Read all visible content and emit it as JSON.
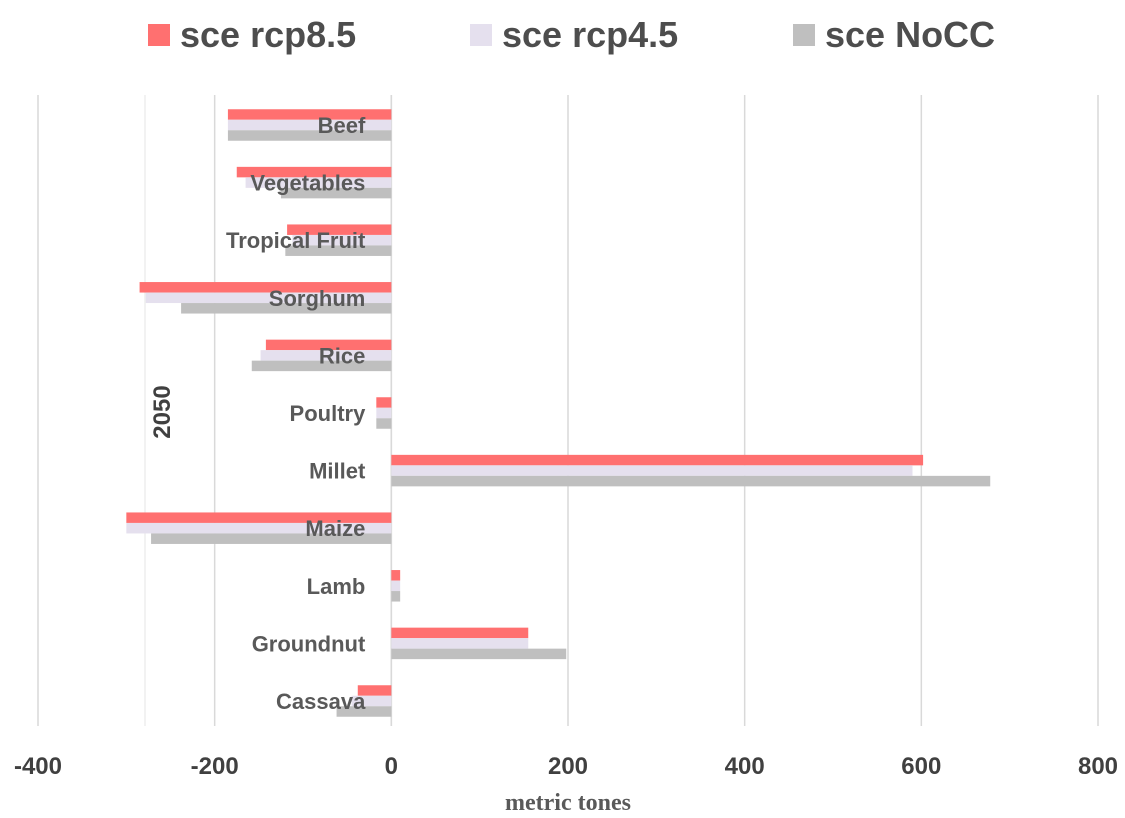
{
  "chart_data": {
    "type": "bar",
    "orientation": "horizontal",
    "group_label": "2050",
    "categories": [
      "Beef",
      "Vegetables",
      "Tropical Fruit",
      "Sorghum",
      "Rice",
      "Poultry",
      "Millet",
      "Maize",
      "Lamb",
      "Groundnut",
      "Cassava"
    ],
    "series": [
      {
        "name": "sce rcp8.5",
        "color": "#ff7070",
        "values": [
          -185,
          -175,
          -118,
          -285,
          -142,
          -17,
          602,
          -300,
          10,
          155,
          -38
        ]
      },
      {
        "name": "sce rcp4.5",
        "color": "#e5e0ee",
        "values": [
          -185,
          -165,
          -112,
          -278,
          -148,
          -17,
          590,
          -300,
          10,
          155,
          -45
        ]
      },
      {
        "name": "sce NoCC",
        "color": "#bfbfbf",
        "values": [
          -185,
          -125,
          -120,
          -238,
          -158,
          -17,
          678,
          -272,
          10,
          198,
          -62
        ]
      }
    ],
    "xlim": [
      -400,
      800
    ],
    "x_ticks": [
      "-400",
      "-200",
      "0",
      "200",
      "400",
      "600",
      "800"
    ],
    "xlabel": "metric tones",
    "legend_position": "top",
    "grid": true
  }
}
